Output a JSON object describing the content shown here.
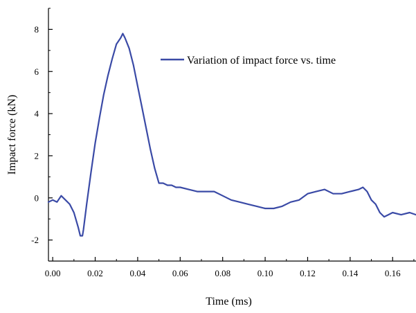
{
  "chart_data": {
    "type": "line",
    "xlabel": "Time (ms)",
    "ylabel": "Impact force (kN)",
    "xlim": [
      -0.002,
      0.171
    ],
    "ylim": [
      -3,
      9
    ],
    "xticks": [
      0.0,
      0.02,
      0.04,
      0.06,
      0.08,
      0.1,
      0.12,
      0.14,
      0.16
    ],
    "xtick_labels": [
      "0.00",
      "0.02",
      "0.04",
      "0.06",
      "0.08",
      "0.10",
      "0.12",
      "0.14",
      "0.16"
    ],
    "yticks": [
      -2,
      0,
      2,
      4,
      6,
      8
    ],
    "ytick_labels": [
      "-2",
      "0",
      "2",
      "4",
      "6",
      "8"
    ],
    "legend_position": "top-right",
    "series_color": "#3a4aa6",
    "grid": false,
    "series": [
      {
        "name": "Variation of impact force vs. time",
        "x": [
          -0.002,
          0.0,
          0.002,
          0.004,
          0.006,
          0.008,
          0.01,
          0.012,
          0.013,
          0.014,
          0.0145,
          0.016,
          0.018,
          0.02,
          0.022,
          0.024,
          0.026,
          0.028,
          0.03,
          0.032,
          0.033,
          0.034,
          0.036,
          0.038,
          0.04,
          0.042,
          0.044,
          0.046,
          0.048,
          0.05,
          0.052,
          0.054,
          0.056,
          0.058,
          0.06,
          0.064,
          0.068,
          0.072,
          0.076,
          0.08,
          0.084,
          0.088,
          0.092,
          0.096,
          0.1,
          0.104,
          0.108,
          0.112,
          0.116,
          0.12,
          0.124,
          0.128,
          0.132,
          0.136,
          0.14,
          0.144,
          0.146,
          0.148,
          0.15,
          0.152,
          0.154,
          0.156,
          0.158,
          0.16,
          0.164,
          0.168,
          0.171
        ],
        "y": [
          -0.2,
          -0.1,
          -0.2,
          0.1,
          -0.1,
          -0.3,
          -0.7,
          -1.4,
          -1.8,
          -1.8,
          -1.5,
          -0.3,
          1.2,
          2.6,
          3.8,
          4.9,
          5.8,
          6.6,
          7.3,
          7.6,
          7.8,
          7.6,
          7.1,
          6.3,
          5.3,
          4.3,
          3.3,
          2.3,
          1.4,
          0.7,
          0.7,
          0.6,
          0.6,
          0.5,
          0.5,
          0.4,
          0.3,
          0.3,
          0.3,
          0.1,
          -0.1,
          -0.2,
          -0.3,
          -0.4,
          -0.5,
          -0.5,
          -0.4,
          -0.2,
          -0.1,
          0.2,
          0.3,
          0.4,
          0.2,
          0.2,
          0.3,
          0.4,
          0.5,
          0.3,
          -0.1,
          -0.3,
          -0.7,
          -0.9,
          -0.8,
          -0.7,
          -0.8,
          -0.7,
          -0.8
        ]
      }
    ]
  }
}
